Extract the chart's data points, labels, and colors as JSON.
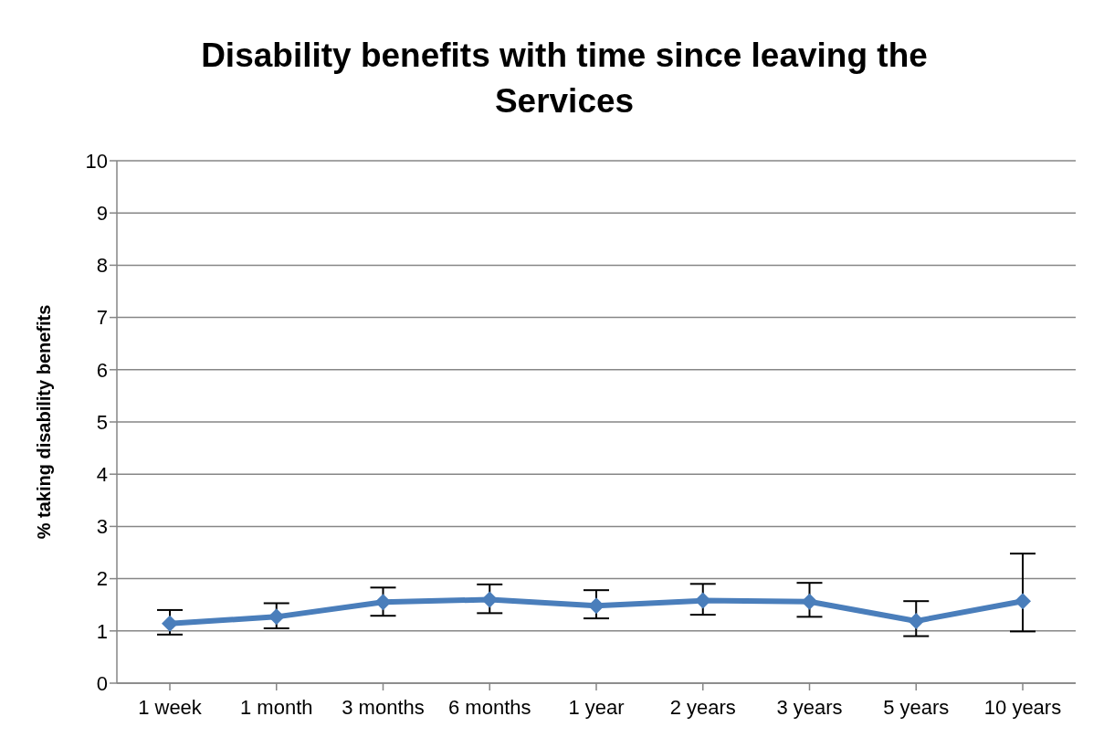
{
  "chart_data": {
    "type": "line",
    "title": "Disability benefits with time since leaving the Services",
    "ylabel": "% taking disability benefits",
    "categories": [
      "1 week",
      "1 month",
      "3 months",
      "6 months",
      "1 year",
      "2 years",
      "3 years",
      "5 years",
      "10 years"
    ],
    "series": [
      {
        "color": "#4a7ebb",
        "values": [
          1.14,
          1.27,
          1.55,
          1.6,
          1.48,
          1.58,
          1.56,
          1.19,
          1.57
        ],
        "errors": [
          [
            0.93,
            1.4
          ],
          [
            1.05,
            1.53
          ],
          [
            1.29,
            1.83
          ],
          [
            1.34,
            1.89
          ],
          [
            1.24,
            1.78
          ],
          [
            1.31,
            1.9
          ],
          [
            1.27,
            1.92
          ],
          [
            0.9,
            1.57
          ],
          [
            0.99,
            2.48
          ]
        ]
      }
    ],
    "ylim": [
      0,
      10
    ],
    "yticks": [
      0,
      1,
      2,
      3,
      4,
      5,
      6,
      7,
      8,
      9,
      10
    ],
    "grid": "y",
    "legend": false,
    "marker": "diamond",
    "line_style": "solid"
  }
}
